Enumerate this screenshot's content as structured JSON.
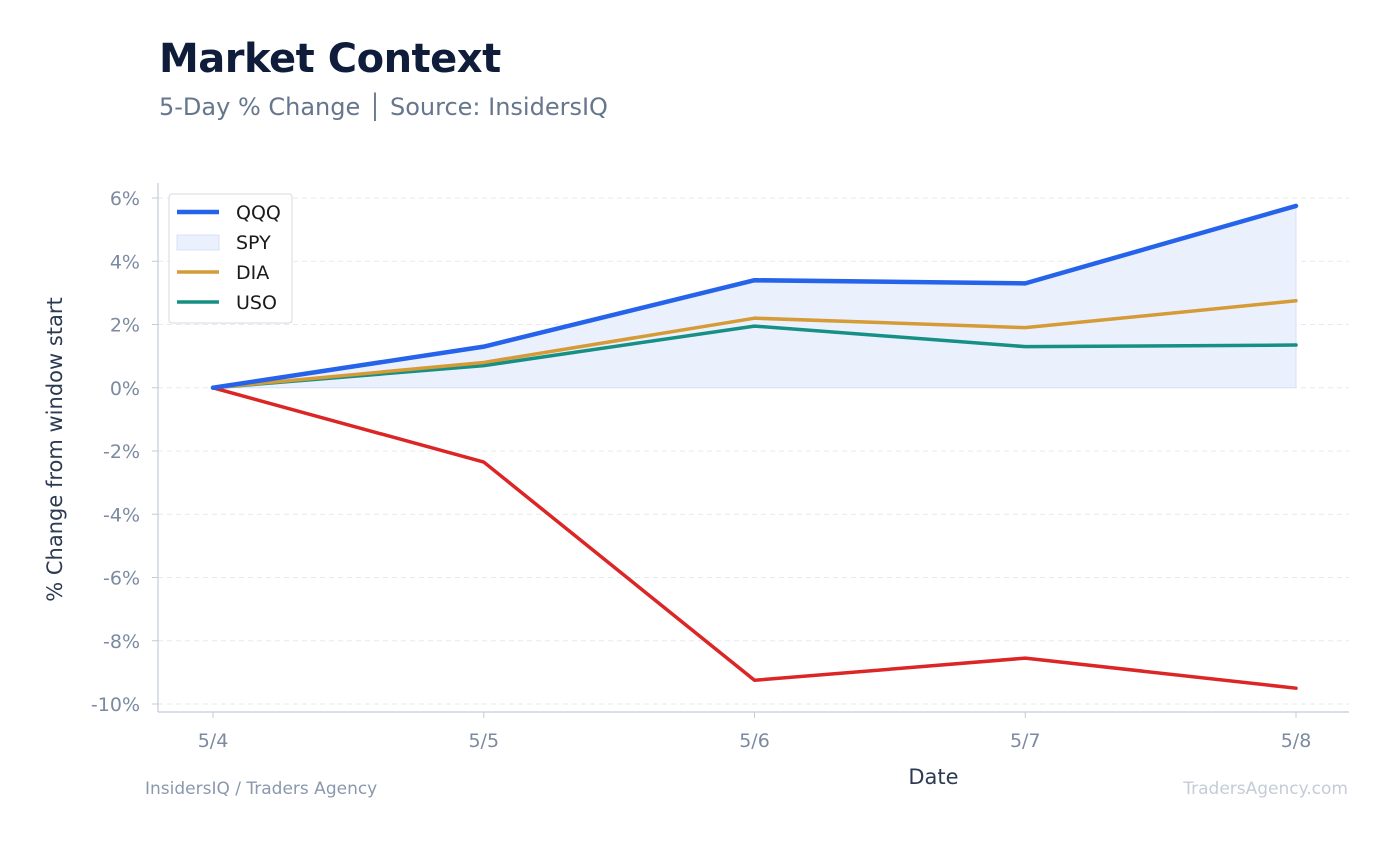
{
  "header": {
    "title": "Market Context",
    "subtitle": "5-Day % Change │ Source: InsidersIQ"
  },
  "footer": {
    "left": "InsidersIQ / Traders Agency",
    "right": "TradersAgency.com"
  },
  "colors": {
    "QQQ": "#2563eb",
    "SPY_fill": "#ebf0fd",
    "SPY_edge": "#d7e0fb",
    "DIA": "#d49b36",
    "USO": "#168f84",
    "unlabeled_series": "#dc2626",
    "grid": "#e6e9ef",
    "axis": "#c3cbd8"
  },
  "chart_data": {
    "type": "line",
    "title": "Market Context",
    "subtitle": "5-Day % Change │ Source: InsidersIQ",
    "xlabel": "Date",
    "ylabel": "% Change from window start",
    "categories": [
      "5/4",
      "5/5",
      "5/6",
      "5/7",
      "5/8"
    ],
    "ylim": [
      -10,
      6
    ],
    "yticks": [
      6,
      4,
      2,
      0,
      -2,
      -4,
      -6,
      -8,
      -10
    ],
    "ytick_labels": [
      "6%",
      "4%",
      "2%",
      "0%",
      "-2%",
      "-4%",
      "-6%",
      "-8%",
      "-10%"
    ],
    "grid": true,
    "legend_position": "top-left",
    "series": [
      {
        "name": "QQQ",
        "kind": "line",
        "values": [
          0,
          1.3,
          3.4,
          3.3,
          5.75
        ]
      },
      {
        "name": "SPY",
        "kind": "area",
        "values": [
          0,
          1.3,
          3.4,
          3.3,
          5.75
        ]
      },
      {
        "name": "DIA",
        "kind": "line",
        "values": [
          0,
          0.8,
          2.2,
          1.9,
          2.75
        ]
      },
      {
        "name": "USO",
        "kind": "line",
        "values": [
          0,
          0.7,
          1.95,
          1.3,
          1.35
        ]
      },
      {
        "kind": "line",
        "values": [
          0,
          -2.35,
          -9.25,
          -8.55,
          -9.5
        ]
      }
    ]
  }
}
